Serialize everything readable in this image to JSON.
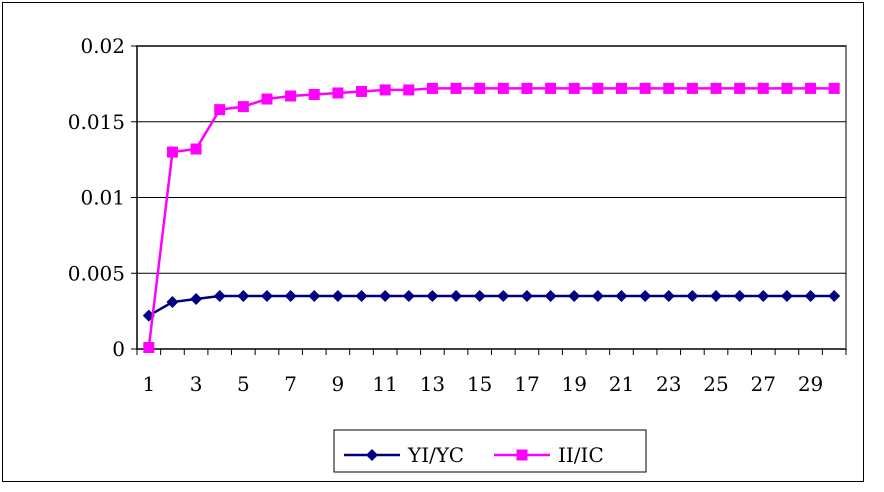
{
  "chart_data": {
    "type": "line",
    "title": "",
    "xlabel": "",
    "ylabel": "",
    "x": [
      1,
      2,
      3,
      4,
      5,
      6,
      7,
      8,
      9,
      10,
      11,
      12,
      13,
      14,
      15,
      16,
      17,
      18,
      19,
      20,
      21,
      22,
      23,
      24,
      25,
      26,
      27,
      28,
      29,
      30
    ],
    "x_tick_labels": [
      "1",
      "3",
      "5",
      "7",
      "9",
      "11",
      "13",
      "15",
      "17",
      "19",
      "21",
      "23",
      "25",
      "27",
      "29"
    ],
    "y_tick_labels": [
      "0",
      "0.005",
      "0.01",
      "0.015",
      "0.02"
    ],
    "y_ticks": [
      0,
      0.005,
      0.01,
      0.015,
      0.02
    ],
    "ylim": [
      0,
      0.02
    ],
    "grid": "horizontal",
    "legend": "bottom",
    "plot_background": "#ffffff",
    "series": [
      {
        "name": "YI/YC",
        "color": "#000080",
        "marker": "diamond",
        "values": [
          0.0022,
          0.0031,
          0.0033,
          0.0035,
          0.0035,
          0.0035,
          0.0035,
          0.0035,
          0.0035,
          0.0035,
          0.0035,
          0.0035,
          0.0035,
          0.0035,
          0.0035,
          0.0035,
          0.0035,
          0.0035,
          0.0035,
          0.0035,
          0.0035,
          0.0035,
          0.0035,
          0.0035,
          0.0035,
          0.0035,
          0.0035,
          0.0035,
          0.0035,
          0.0035
        ]
      },
      {
        "name": "II/IC",
        "color": "#FF00FF",
        "marker": "square",
        "values": [
          0.0001,
          0.013,
          0.0132,
          0.0158,
          0.016,
          0.0165,
          0.0167,
          0.0168,
          0.0169,
          0.017,
          0.0171,
          0.0171,
          0.0172,
          0.0172,
          0.0172,
          0.0172,
          0.0172,
          0.0172,
          0.0172,
          0.0172,
          0.0172,
          0.0172,
          0.0172,
          0.0172,
          0.0172,
          0.0172,
          0.0172,
          0.0172,
          0.0172,
          0.0172
        ]
      }
    ]
  }
}
